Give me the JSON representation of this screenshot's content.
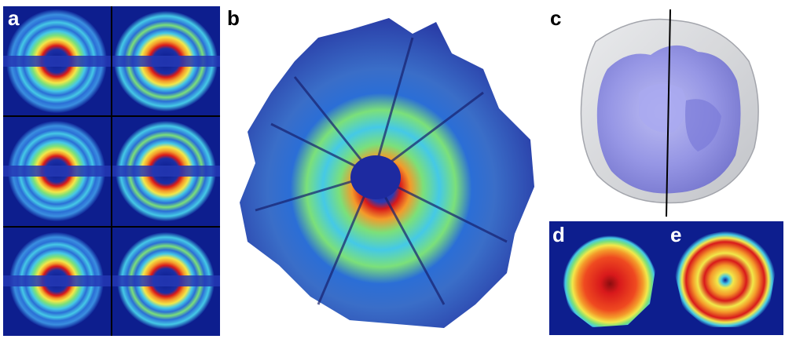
{
  "panels": {
    "a": {
      "label": "a"
    },
    "b": {
      "label": "b"
    },
    "c": {
      "label": "c"
    },
    "d": {
      "label": "d"
    },
    "e": {
      "label": "e"
    }
  },
  "colors": {
    "background_dark": "#0b1a8c",
    "ring_blue": "#2b6ed6",
    "ring_cyan": "#45c9e6",
    "ring_green": "#7be07a",
    "ring_yellow": "#f2e84a",
    "ring_orange": "#f49a2a",
    "ring_red": "#d8191b",
    "shell_gray": "#d9dadd",
    "core_lavender": "#8e8ee8"
  }
}
